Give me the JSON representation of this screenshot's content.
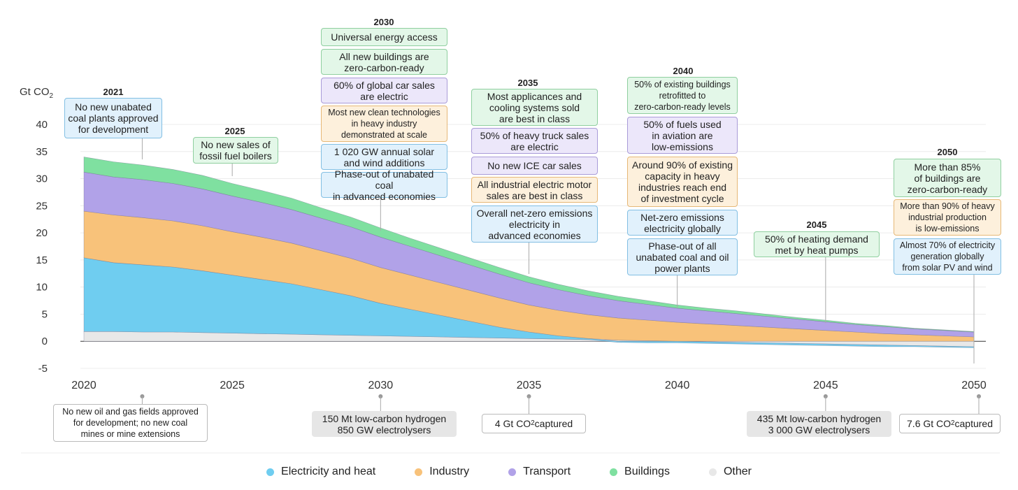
{
  "chart_data": {
    "type": "area",
    "ylabel": "Gt CO2",
    "ylim": [
      -5,
      40
    ],
    "yticks": [
      40,
      35,
      30,
      25,
      20,
      15,
      10,
      5,
      0,
      -5
    ],
    "xticks": [
      2020,
      2025,
      2030,
      2035,
      2040,
      2045,
      2050
    ],
    "x": [
      2020,
      2021,
      2022,
      2023,
      2024,
      2025,
      2026,
      2027,
      2028,
      2029,
      2030,
      2031,
      2032,
      2033,
      2034,
      2035,
      2036,
      2037,
      2038,
      2039,
      2040,
      2041,
      2042,
      2043,
      2044,
      2045,
      2046,
      2047,
      2048,
      2049,
      2050
    ],
    "series": [
      {
        "name": "Other",
        "color": "#e8e8e8",
        "values": [
          1.8,
          1.8,
          1.7,
          1.7,
          1.6,
          1.5,
          1.4,
          1.3,
          1.2,
          1.1,
          1.0,
          0.9,
          0.8,
          0.7,
          0.6,
          0.5,
          0.4,
          0.3,
          0.2,
          0.1,
          0.0,
          -0.1,
          -0.2,
          -0.3,
          -0.4,
          -0.5,
          -0.6,
          -0.7,
          -0.8,
          -0.9,
          -1.0
        ]
      },
      {
        "name": "Electricity and heat",
        "color": "#6fcdf0",
        "values": [
          13.6,
          12.7,
          12.4,
          12.0,
          11.4,
          10.7,
          10.0,
          9.3,
          8.3,
          7.3,
          6.0,
          5.0,
          4.0,
          3.0,
          2.0,
          1.2,
          0.6,
          0.2,
          -0.2,
          -0.3,
          -0.3,
          -0.3,
          -0.3,
          -0.3,
          -0.3,
          -0.3,
          -0.3,
          -0.3,
          -0.2,
          -0.2,
          -0.2
        ]
      },
      {
        "name": "Industry",
        "color": "#f8c27a",
        "values": [
          8.6,
          8.8,
          8.7,
          8.5,
          8.3,
          8.0,
          7.8,
          7.5,
          7.2,
          6.9,
          6.6,
          6.3,
          6.0,
          5.7,
          5.4,
          5.0,
          4.7,
          4.4,
          4.1,
          3.8,
          3.5,
          3.2,
          2.9,
          2.6,
          2.3,
          2.0,
          1.7,
          1.4,
          1.2,
          1.0,
          0.8
        ]
      },
      {
        "name": "Transport",
        "color": "#b1a2e8",
        "values": [
          7.2,
          7.0,
          7.0,
          6.9,
          6.8,
          6.6,
          6.4,
          6.2,
          6.0,
          5.8,
          5.6,
          5.3,
          5.0,
          4.7,
          4.4,
          4.1,
          3.8,
          3.5,
          3.2,
          2.9,
          2.6,
          2.4,
          2.2,
          2.0,
          1.8,
          1.6,
          1.4,
          1.3,
          1.1,
          1.0,
          0.9
        ]
      },
      {
        "name": "Buildings",
        "color": "#7fe0a0",
        "values": [
          2.8,
          2.8,
          2.7,
          2.6,
          2.5,
          2.3,
          2.2,
          2.1,
          1.9,
          1.8,
          1.7,
          1.5,
          1.4,
          1.3,
          1.2,
          1.1,
          1.0,
          0.9,
          0.8,
          0.7,
          0.6,
          0.5,
          0.5,
          0.4,
          0.3,
          0.3,
          0.2,
          0.2,
          0.1,
          0.1,
          0.1
        ]
      }
    ]
  },
  "milestones_top": {
    "y2021": {
      "year": "2021",
      "items": [
        "No new unabated\ncoal plants approved\nfor development"
      ]
    },
    "y2025": {
      "year": "2025",
      "items": [
        "No new sales of\nfossil fuel boilers"
      ]
    },
    "y2030": {
      "year": "2030",
      "items": [
        "Universal energy access",
        "All new buildings are\nzero-carbon-ready",
        "60% of global car sales\nare electric",
        "Most new clean technologies\nin heavy industry\ndemonstrated at scale",
        "1 020 GW annual solar\nand wind additions",
        "Phase-out of unabated coal\nin advanced economies"
      ]
    },
    "y2035": {
      "year": "2035",
      "items": [
        "Most applicances and\ncooling systems sold\nare best in class",
        "50% of heavy truck sales\nare electric",
        "No new ICE car sales",
        "All industrial electric motor\nsales are best in class",
        "Overall net-zero emissions\nelectricity in\nadvanced economies"
      ]
    },
    "y2040": {
      "year": "2040",
      "items": [
        "50% of existing buildings\nretrofitted to\nzero-carbon-ready levels",
        "50% of fuels used\nin aviation are\nlow-emissions",
        "Around 90% of existing\ncapacity in heavy\nindustries reach end\nof investment cycle",
        "Net-zero emissions\nelectricity globally",
        "Phase-out of all\nunabated coal and oil\npower plants"
      ]
    },
    "y2045": {
      "year": "2045",
      "items": [
        "50% of heating demand\nmet by heat pumps"
      ]
    },
    "y2050": {
      "year": "2050",
      "items": [
        "More than 85%\nof buildings are\nzero-carbon-ready",
        "More than 90% of heavy\nindustrial production\nis low-emissions",
        "Almost 70% of electricity\ngeneration globally\nfrom solar PV and wind"
      ]
    }
  },
  "milestones_bottom": {
    "b2021": "No new oil and gas fields approved\nfor development; no new coal\nmines or mine extensions",
    "b2030": "150 Mt low-carbon hydrogen\n850 GW electrolysers",
    "b2035": {
      "pre": "4 Gt CO",
      "sub": "2",
      "post": " captured"
    },
    "b2045": "435 Mt low-carbon hydrogen\n3 000 GW electrolysers",
    "b2050": {
      "pre": "7.6 Gt CO",
      "sub": "2",
      "post": " captured"
    }
  },
  "legend": [
    {
      "label": "Electricity and heat",
      "color": "#6fcdf0"
    },
    {
      "label": "Industry",
      "color": "#f8c27a"
    },
    {
      "label": "Transport",
      "color": "#b1a2e8"
    },
    {
      "label": "Buildings",
      "color": "#7fe0a0"
    },
    {
      "label": "Other",
      "color": "#e8e8e8"
    }
  ]
}
